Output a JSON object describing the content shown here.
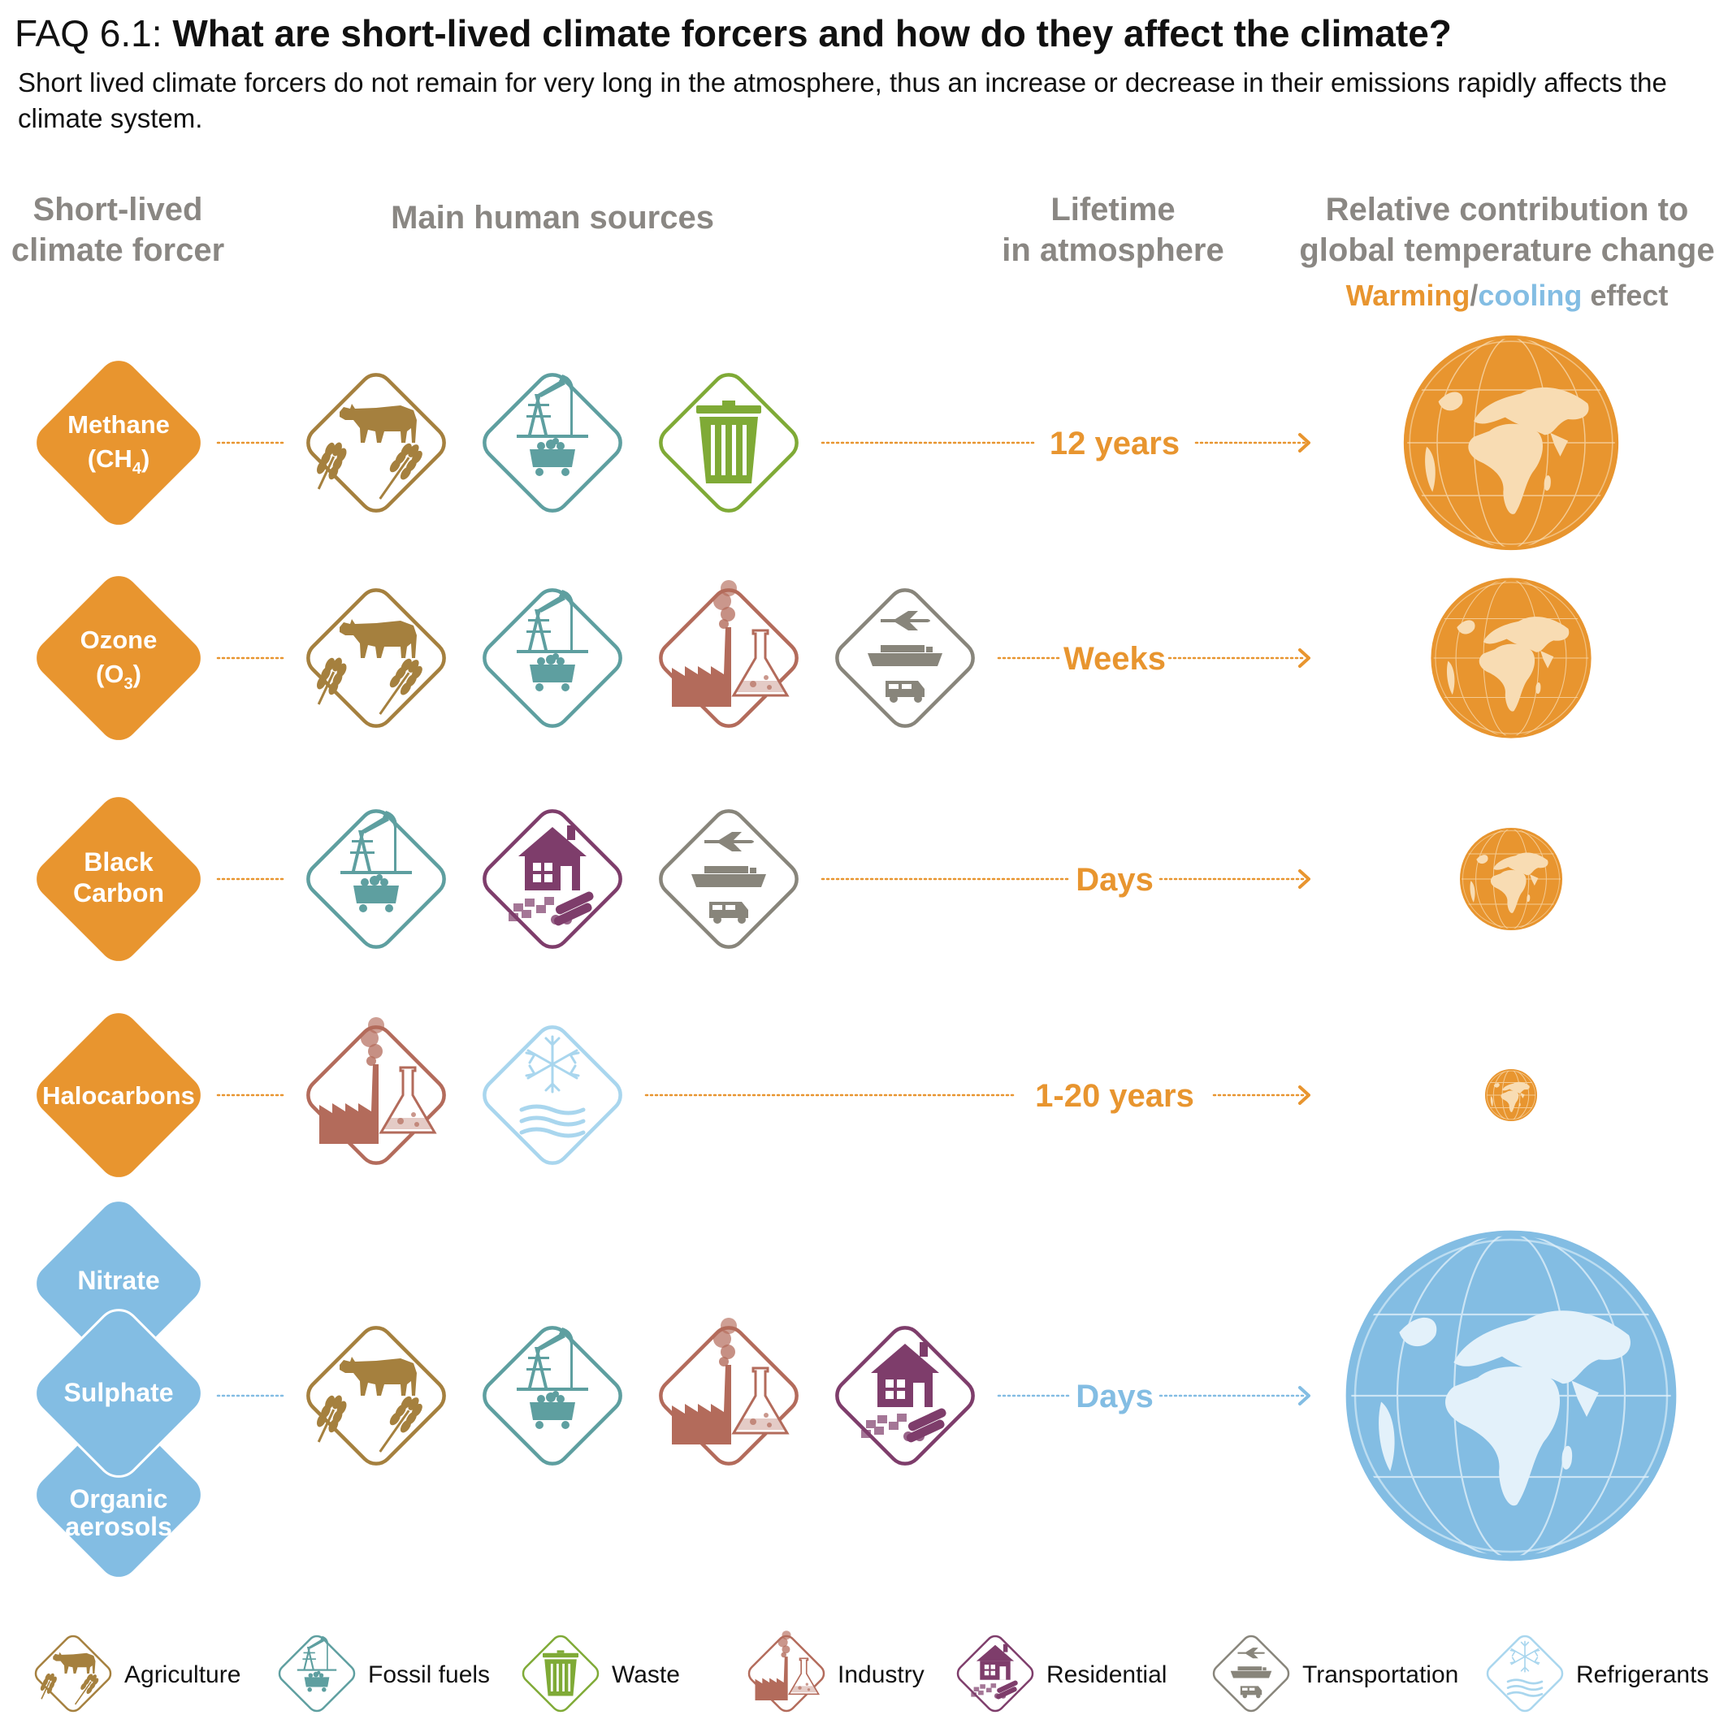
{
  "header": {
    "title_prefix": "FAQ 6.1:",
    "title_main": "What are short-lived climate forcers and how do they affect the climate?",
    "subtitle": "Short lived climate forcers do not remain for very long in the atmosphere, thus an increase or decrease in their emissions rapidly affects the climate system."
  },
  "columns": {
    "forcer": [
      "Short-lived",
      "climate forcer"
    ],
    "sources": "Main human sources",
    "lifetime": [
      "Lifetime",
      "in atmosphere"
    ],
    "contribution": [
      "Relative contribution to",
      "global temperature change"
    ],
    "effect": {
      "warming": "Warming",
      "slash": "/",
      "cooling": "cooling",
      "suffix": " effect"
    }
  },
  "colors": {
    "warming": "#e8952f",
    "cooling": "#83bde3",
    "agriculture": "#a5803e",
    "fossil": "#5e9fa0",
    "waste": "#7faa36",
    "industry": "#b36b5b",
    "residential": "#7e3d6b",
    "transportation": "#88857b",
    "refrigerants": "#a9d6ee",
    "header_gray": "#8a8783"
  },
  "rows": [
    {
      "forcer": [
        "Methane",
        "(CH",
        "4",
        ")"
      ],
      "sources": [
        "agriculture",
        "fossil",
        "waste"
      ],
      "lifetime": "12 years",
      "effect": "warming",
      "globe_size": "large"
    },
    {
      "forcer": [
        "Ozone",
        "(O",
        "3",
        ")"
      ],
      "sources": [
        "agriculture",
        "fossil",
        "industry",
        "transportation"
      ],
      "lifetime": "Weeks",
      "effect": "warming",
      "globe_size": "medium"
    },
    {
      "forcer": [
        "Black",
        "Carbon"
      ],
      "sources": [
        "fossil",
        "residential",
        "transportation"
      ],
      "lifetime": "Days",
      "effect": "warming",
      "globe_size": "small"
    },
    {
      "forcer": [
        "Halocarbons"
      ],
      "sources": [
        "industry",
        "refrigerants"
      ],
      "lifetime": "1-20 years",
      "effect": "warming",
      "globe_size": "tiny"
    },
    {
      "forcer": [
        "Nitrate",
        "Sulphate",
        "Organic",
        "aerosols"
      ],
      "sources": [
        "agriculture",
        "fossil",
        "industry",
        "residential"
      ],
      "lifetime": "Days",
      "effect": "cooling",
      "globe_size": "very large"
    }
  ],
  "legend": [
    {
      "key": "agriculture",
      "label": "Agriculture",
      "icon": "cow-wheat-icon"
    },
    {
      "key": "fossil",
      "label": "Fossil fuels",
      "icon": "oil-pump-coal-icon"
    },
    {
      "key": "waste",
      "label": "Waste",
      "icon": "trash-bin-icon"
    },
    {
      "key": "industry",
      "label": "Industry",
      "icon": "factory-flask-icon"
    },
    {
      "key": "residential",
      "label": "Residential",
      "icon": "house-wood-icon"
    },
    {
      "key": "transportation",
      "label": "Transportation",
      "icon": "plane-ship-van-icon"
    },
    {
      "key": "refrigerants",
      "label": "Refrigerants",
      "icon": "snowflake-waves-icon"
    }
  ]
}
